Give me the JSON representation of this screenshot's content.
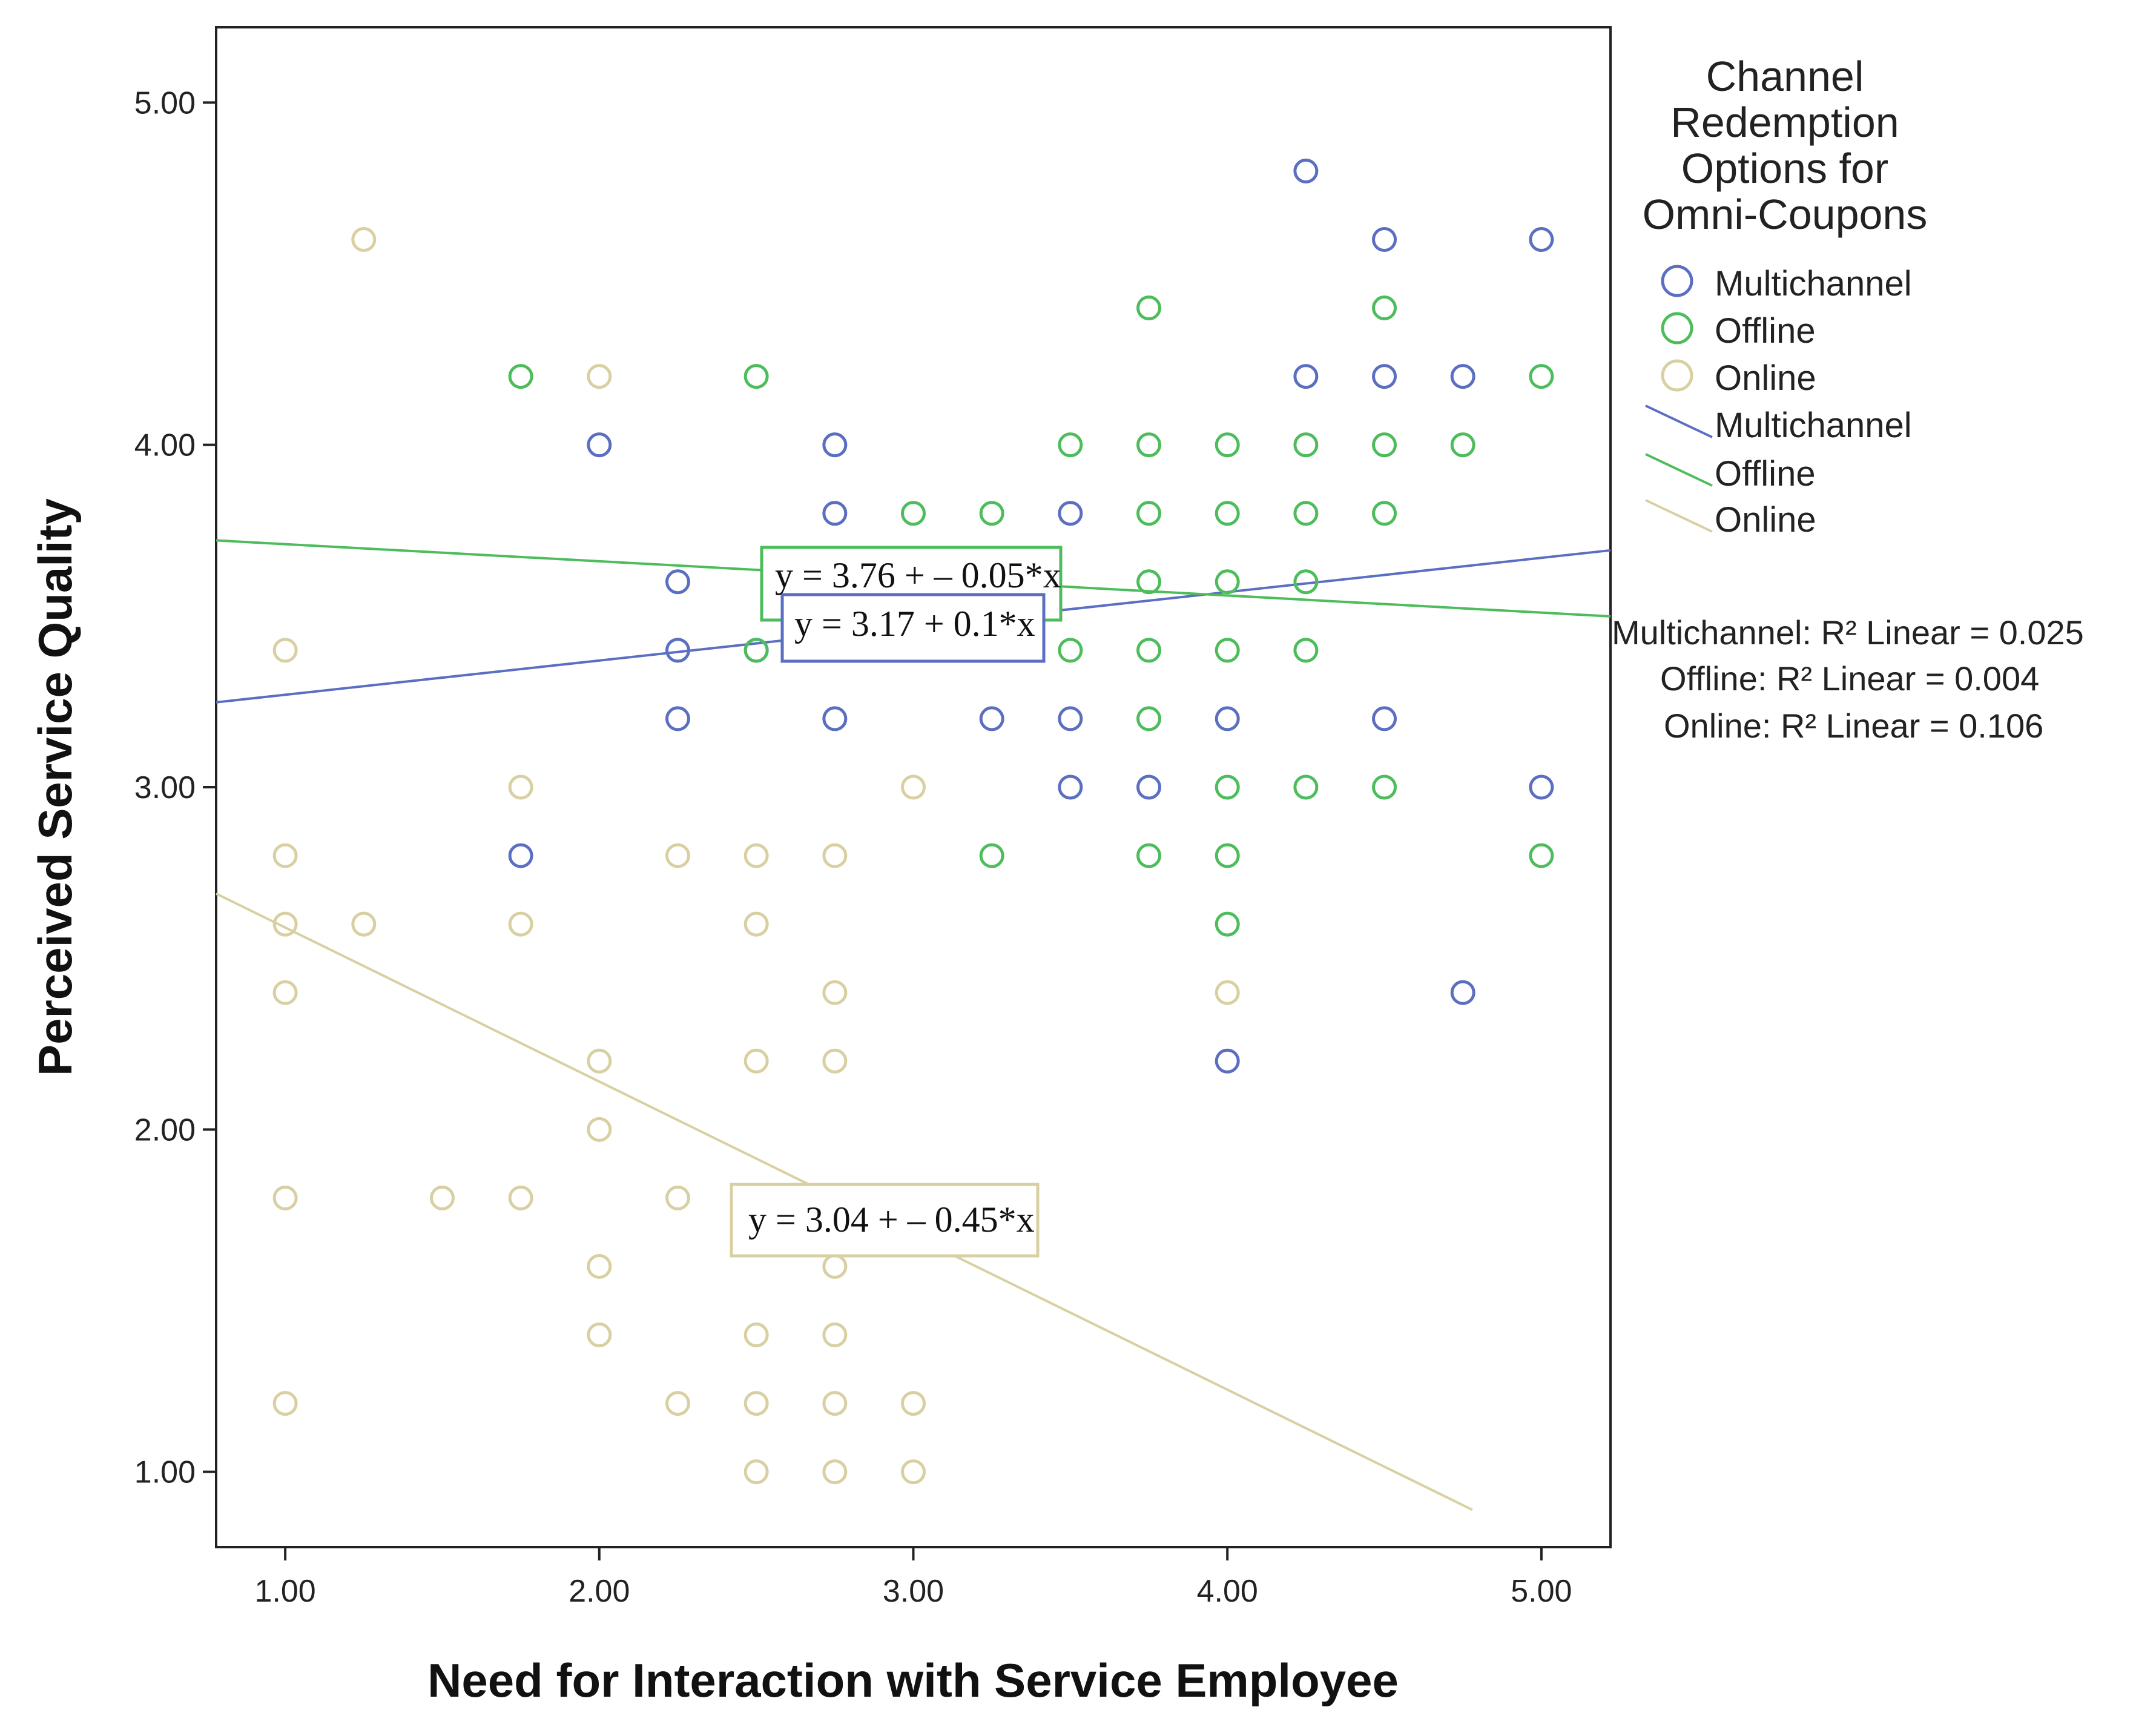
{
  "chart_data": {
    "type": "scatter",
    "title": "",
    "xlabel": "Need for Interaction with Service Employee",
    "ylabel": "Perceived Service Quality",
    "xlim": [
      0.78,
      5.22
    ],
    "ylim": [
      0.78,
      5.22
    ],
    "x_ticks": [
      "1.00",
      "2.00",
      "3.00",
      "4.00",
      "5.00"
    ],
    "y_ticks": [
      "1.00",
      "2.00",
      "3.00",
      "4.00",
      "5.00"
    ],
    "x_tick_values": [
      1,
      2,
      3,
      4,
      5
    ],
    "y_tick_values": [
      1,
      2,
      3,
      4,
      5
    ],
    "grid": false,
    "legend": {
      "title_lines": [
        "Channel",
        "Redemption",
        "Options for",
        "Omni-Coupons"
      ],
      "placement": "right",
      "marker_entries": [
        "Multichannel",
        "Offline",
        "Online"
      ],
      "line_entries": [
        "Multichannel",
        "Offline",
        "Online"
      ]
    },
    "r2": [
      {
        "label": "Multichannel: R² Linear = ",
        "value": "0.025"
      },
      {
        "label": "Offline: R² Linear = ",
        "value": "0.004"
      },
      {
        "label": "Online: R² Linear = ",
        "value": "0.106"
      }
    ],
    "series": [
      {
        "name": "Multichannel",
        "color": "#5b6fc2",
        "intercept": 3.17,
        "slope": 0.1,
        "equation": "y = 3.17 + 0.1*x",
        "fit_range": [
          0.78,
          5.22
        ],
        "points": [
          [
            4.25,
            4.8
          ],
          [
            4.5,
            4.6
          ],
          [
            5.0,
            4.6
          ],
          [
            4.25,
            4.2
          ],
          [
            4.5,
            4.2
          ],
          [
            4.75,
            4.2
          ],
          [
            2.0,
            4.0
          ],
          [
            2.75,
            4.0
          ],
          [
            2.75,
            3.8
          ],
          [
            3.5,
            3.8
          ],
          [
            2.25,
            3.6
          ],
          [
            2.25,
            3.4
          ],
          [
            2.5,
            3.4
          ],
          [
            2.25,
            3.2
          ],
          [
            2.75,
            3.2
          ],
          [
            3.25,
            3.2
          ],
          [
            3.5,
            3.2
          ],
          [
            4.0,
            3.2
          ],
          [
            4.5,
            3.2
          ],
          [
            3.5,
            3.0
          ],
          [
            3.75,
            3.0
          ],
          [
            5.0,
            3.0
          ],
          [
            1.75,
            2.8
          ],
          [
            4.75,
            2.4
          ],
          [
            4.0,
            2.2
          ]
        ]
      },
      {
        "name": "Offline",
        "color": "#4dbd5c",
        "intercept": 3.76,
        "slope": -0.05,
        "equation": "y = 3.76 + – 0.05*x",
        "fit_range": [
          0.78,
          5.22
        ],
        "points": [
          [
            3.75,
            4.4
          ],
          [
            4.5,
            4.4
          ],
          [
            1.75,
            4.2
          ],
          [
            2.5,
            4.2
          ],
          [
            5.0,
            4.2
          ],
          [
            3.5,
            4.0
          ],
          [
            3.75,
            4.0
          ],
          [
            4.0,
            4.0
          ],
          [
            4.25,
            4.0
          ],
          [
            4.5,
            4.0
          ],
          [
            4.75,
            4.0
          ],
          [
            3.0,
            3.8
          ],
          [
            3.25,
            3.8
          ],
          [
            3.75,
            3.8
          ],
          [
            4.0,
            3.8
          ],
          [
            4.25,
            3.8
          ],
          [
            4.5,
            3.8
          ],
          [
            3.75,
            3.6
          ],
          [
            4.0,
            3.6
          ],
          [
            4.25,
            3.6
          ],
          [
            2.5,
            3.4
          ],
          [
            3.5,
            3.4
          ],
          [
            3.75,
            3.4
          ],
          [
            4.0,
            3.4
          ],
          [
            4.25,
            3.4
          ],
          [
            3.75,
            3.2
          ],
          [
            4.0,
            3.0
          ],
          [
            4.25,
            3.0
          ],
          [
            4.5,
            3.0
          ],
          [
            3.25,
            2.8
          ],
          [
            3.75,
            2.8
          ],
          [
            4.0,
            2.8
          ],
          [
            5.0,
            2.8
          ],
          [
            4.0,
            2.6
          ]
        ]
      },
      {
        "name": "Online",
        "color": "#d8d0a2",
        "intercept": 3.04,
        "slope": -0.45,
        "equation": "y = 3.04 + – 0.45*x",
        "fit_range": [
          0.78,
          4.78
        ],
        "points": [
          [
            1.25,
            4.6
          ],
          [
            2.0,
            4.2
          ],
          [
            1.0,
            3.4
          ],
          [
            1.75,
            3.0
          ],
          [
            3.0,
            3.0
          ],
          [
            1.0,
            2.8
          ],
          [
            2.25,
            2.8
          ],
          [
            2.5,
            2.8
          ],
          [
            2.75,
            2.8
          ],
          [
            1.0,
            2.6
          ],
          [
            1.25,
            2.6
          ],
          [
            1.75,
            2.6
          ],
          [
            2.5,
            2.6
          ],
          [
            1.0,
            2.4
          ],
          [
            2.75,
            2.4
          ],
          [
            4.0,
            2.4
          ],
          [
            2.0,
            2.2
          ],
          [
            2.5,
            2.2
          ],
          [
            2.75,
            2.2
          ],
          [
            2.0,
            2.0
          ],
          [
            1.0,
            1.8
          ],
          [
            1.5,
            1.8
          ],
          [
            1.75,
            1.8
          ],
          [
            2.25,
            1.8
          ],
          [
            2.0,
            1.6
          ],
          [
            2.75,
            1.6
          ],
          [
            2.0,
            1.4
          ],
          [
            2.5,
            1.4
          ],
          [
            2.75,
            1.4
          ],
          [
            1.0,
            1.2
          ],
          [
            2.25,
            1.2
          ],
          [
            2.5,
            1.2
          ],
          [
            2.75,
            1.2
          ],
          [
            3.0,
            1.2
          ],
          [
            2.5,
            1.0
          ],
          [
            2.75,
            1.0
          ],
          [
            3.0,
            1.0
          ]
        ]
      }
    ]
  }
}
